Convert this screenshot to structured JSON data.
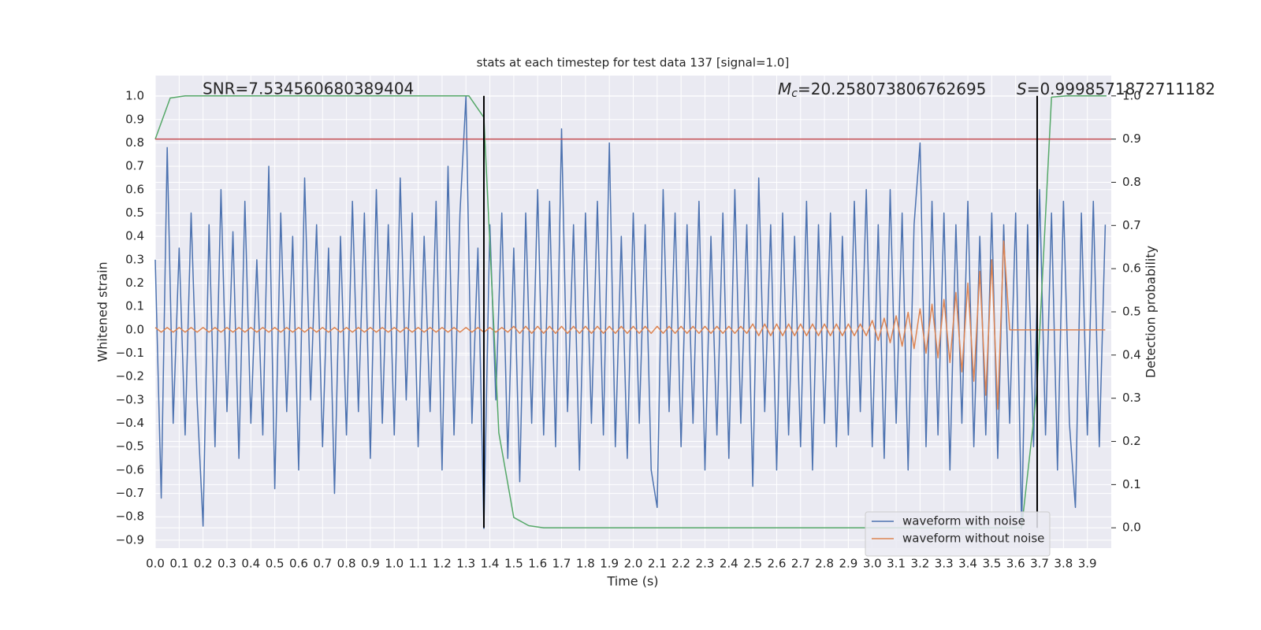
{
  "chart_data": {
    "type": "line",
    "title": "stats at each timestep for test data 137 [signal=1.0]",
    "x_label": "Time (s)",
    "y_label": "Whitened strain",
    "y2_label": "Detection probability",
    "xlim": [
      0,
      4.0
    ],
    "ylim": [
      -0.934,
      1.088
    ],
    "y2lim": [
      -0.047,
      1.047
    ],
    "xticks": [
      {
        "value": 0,
        "label": "0.0"
      },
      0.1,
      0.2,
      0.3,
      0.4,
      0.5,
      0.6,
      0.7,
      0.8,
      0.9,
      {
        "value": 1,
        "label": "1.0"
      },
      1.1,
      1.2,
      1.3,
      1.4,
      1.5,
      1.6,
      1.7,
      1.8,
      1.9,
      {
        "value": 2,
        "label": "2.0"
      },
      2.1,
      2.2,
      2.3,
      2.4,
      2.5,
      2.6,
      2.7,
      2.8,
      2.9,
      {
        "value": 3,
        "label": "3.0"
      },
      3.1,
      3.2,
      3.3,
      3.4,
      3.5,
      3.6,
      3.7,
      3.8,
      3.9
    ],
    "yticks": [
      {
        "value": -0.9,
        "label": "−0.9"
      },
      {
        "value": -0.8,
        "label": "−0.8"
      },
      {
        "value": -0.7,
        "label": "−0.7"
      },
      {
        "value": -0.6,
        "label": "−0.6"
      },
      {
        "value": -0.5,
        "label": "−0.5"
      },
      {
        "value": -0.4,
        "label": "−0.4"
      },
      {
        "value": -0.3,
        "label": "−0.3"
      },
      {
        "value": -0.2,
        "label": "−0.2"
      },
      {
        "value": -0.1,
        "label": "−0.1"
      },
      {
        "value": 0,
        "label": "0.0"
      },
      0.1,
      0.2,
      0.3,
      0.4,
      0.5,
      0.6,
      0.7,
      0.8,
      0.9,
      {
        "value": 1,
        "label": "1.0"
      }
    ],
    "y2ticks": [
      {
        "value": 0,
        "label": "0.0"
      },
      0.1,
      0.2,
      0.3,
      0.4,
      0.5,
      0.6,
      0.7,
      0.8,
      0.9,
      {
        "value": 1,
        "label": "1.0"
      }
    ],
    "grid": true,
    "legend": "lower right",
    "annotations": {
      "snr": "SNR=7.534560680389404",
      "mc_symbol": "M",
      "mc_subscript": "c",
      "mc_value": "=20.258073806762695",
      "s_symbol": "S",
      "s_value": "=0.9998571872711182"
    },
    "x": [
      0,
      0.025,
      0.05,
      0.075,
      0.1,
      0.125,
      0.15,
      0.175,
      0.2,
      0.225,
      0.25,
      0.275,
      0.3,
      0.325,
      0.35,
      0.375,
      0.4,
      0.425,
      0.45,
      0.475,
      0.5,
      0.525,
      0.55,
      0.575,
      0.6,
      0.625,
      0.65,
      0.675,
      0.7,
      0.725,
      0.75,
      0.775,
      0.8,
      0.825,
      0.85,
      0.875,
      0.9,
      0.925,
      0.95,
      0.975,
      1.0,
      1.025,
      1.05,
      1.075,
      1.1,
      1.125,
      1.15,
      1.175,
      1.2,
      1.225,
      1.25,
      1.275,
      1.3,
      1.325,
      1.35,
      1.375,
      1.4,
      1.425,
      1.45,
      1.475,
      1.5,
      1.525,
      1.55,
      1.575,
      1.6,
      1.625,
      1.65,
      1.675,
      1.7,
      1.725,
      1.75,
      1.775,
      1.8,
      1.825,
      1.85,
      1.875,
      1.9,
      1.925,
      1.95,
      1.975,
      2.0,
      2.025,
      2.05,
      2.075,
      2.1,
      2.125,
      2.15,
      2.175,
      2.2,
      2.225,
      2.25,
      2.275,
      2.3,
      2.325,
      2.35,
      2.375,
      2.4,
      2.425,
      2.45,
      2.475,
      2.5,
      2.525,
      2.55,
      2.575,
      2.6,
      2.625,
      2.65,
      2.675,
      2.7,
      2.725,
      2.75,
      2.775,
      2.8,
      2.825,
      2.85,
      2.875,
      2.9,
      2.925,
      2.95,
      2.975,
      3.0,
      3.025,
      3.05,
      3.075,
      3.1,
      3.125,
      3.15,
      3.175,
      3.2,
      3.225,
      3.25,
      3.275,
      3.3,
      3.325,
      3.35,
      3.375,
      3.4,
      3.425,
      3.45,
      3.475,
      3.5,
      3.525,
      3.55,
      3.575,
      3.6,
      3.625,
      3.65,
      3.675,
      3.7,
      3.725,
      3.75,
      3.775,
      3.8,
      3.825,
      3.85,
      3.875,
      3.9,
      3.925,
      3.95,
      3.975
    ],
    "series": [
      {
        "name": "waveform with noise",
        "color": "#4c72b0",
        "values": [
          0.3,
          -0.72,
          0.78,
          -0.4,
          0.35,
          -0.45,
          0.5,
          -0.3,
          -0.84,
          0.45,
          -0.5,
          0.6,
          -0.35,
          0.42,
          -0.55,
          0.55,
          -0.4,
          0.3,
          -0.45,
          0.7,
          -0.68,
          0.5,
          -0.35,
          0.4,
          -0.6,
          0.65,
          -0.3,
          0.45,
          -0.5,
          0.35,
          -0.7,
          0.4,
          -0.45,
          0.55,
          -0.35,
          0.5,
          -0.55,
          0.6,
          -0.4,
          0.45,
          -0.45,
          0.65,
          -0.3,
          0.5,
          -0.5,
          0.4,
          -0.35,
          0.55,
          -0.6,
          0.7,
          -0.45,
          0.5,
          1.0,
          -0.4,
          0.35,
          -0.85,
          0.45,
          -0.3,
          0.5,
          -0.55,
          0.35,
          -0.65,
          0.5,
          -0.4,
          0.6,
          -0.45,
          0.55,
          -0.5,
          0.86,
          -0.35,
          0.45,
          -0.6,
          0.5,
          -0.4,
          0.55,
          -0.45,
          0.8,
          -0.5,
          0.4,
          -0.55,
          0.5,
          -0.4,
          0.45,
          -0.6,
          -0.76,
          0.6,
          -0.35,
          0.5,
          -0.5,
          0.45,
          -0.4,
          0.55,
          -0.6,
          0.4,
          -0.45,
          0.5,
          -0.55,
          0.6,
          -0.4,
          0.45,
          -0.67,
          0.65,
          -0.35,
          0.45,
          -0.6,
          0.5,
          -0.45,
          0.4,
          -0.5,
          0.55,
          -0.6,
          0.45,
          -0.4,
          0.5,
          -0.5,
          0.4,
          -0.45,
          0.55,
          -0.35,
          0.6,
          -0.5,
          0.45,
          -0.55,
          0.6,
          -0.4,
          0.5,
          -0.6,
          0.45,
          0.8,
          -0.5,
          0.55,
          -0.45,
          0.5,
          -0.6,
          0.45,
          -0.4,
          0.55,
          -0.5,
          0.4,
          -0.45,
          0.5,
          -0.55,
          0.45,
          -0.4,
          0.5,
          -0.85,
          0.45,
          -0.5,
          0.6,
          -0.45,
          0.5,
          -0.6,
          0.55,
          -0.4,
          -0.76,
          0.5,
          -0.45,
          0.55,
          -0.5,
          0.45
        ]
      },
      {
        "name": "waveform without noise",
        "color": "#dd8452",
        "values": [
          0.01,
          -0.01,
          0.01,
          -0.01,
          0.01,
          -0.01,
          0.01,
          -0.01,
          0.01,
          -0.01,
          0.01,
          -0.01,
          0.01,
          -0.01,
          0.01,
          -0.01,
          0.01,
          -0.01,
          0.01,
          -0.01,
          0.01,
          -0.01,
          0.01,
          -0.01,
          0.01,
          -0.01,
          0.01,
          -0.01,
          0.01,
          -0.01,
          0.01,
          -0.01,
          0.01,
          -0.01,
          0.01,
          -0.01,
          0.01,
          -0.01,
          0.01,
          -0.01,
          0.01,
          -0.01,
          0.01,
          -0.01,
          0.01,
          -0.01,
          0.01,
          -0.01,
          0.01,
          -0.01,
          0.01,
          -0.01,
          0.01,
          -0.01,
          0.01,
          -0.01,
          0.01,
          -0.01,
          0.01,
          -0.01,
          0.015,
          -0.015,
          0.015,
          -0.015,
          0.015,
          -0.015,
          0.015,
          -0.015,
          0.015,
          -0.015,
          0.015,
          -0.015,
          0.015,
          -0.015,
          0.015,
          -0.015,
          0.015,
          -0.015,
          0.015,
          -0.015,
          0.015,
          -0.015,
          0.015,
          -0.015,
          0.015,
          -0.015,
          0.015,
          -0.015,
          0.015,
          -0.015,
          0.015,
          -0.015,
          0.015,
          -0.015,
          0.015,
          -0.015,
          0.015,
          -0.015,
          0.015,
          -0.015,
          0.025,
          -0.025,
          0.025,
          -0.025,
          0.025,
          -0.025,
          0.025,
          -0.025,
          0.025,
          -0.025,
          0.025,
          -0.025,
          0.025,
          -0.025,
          0.025,
          -0.025,
          0.025,
          -0.025,
          0.025,
          -0.025,
          0.04,
          -0.045,
          0.05,
          -0.055,
          0.06,
          -0.07,
          0.075,
          -0.08,
          0.09,
          -0.1,
          0.11,
          -0.12,
          0.13,
          -0.14,
          0.16,
          -0.18,
          0.2,
          -0.22,
          0.25,
          -0.28,
          0.3,
          -0.34,
          0.38,
          0.0,
          0.0,
          0.0,
          0.0,
          0.0,
          0.0,
          0.0,
          0.0,
          0.0,
          0.0,
          0.0,
          0.0,
          0.0,
          0.0,
          0.0,
          0.0,
          0.0
        ]
      },
      {
        "color": "#55a868",
        "axis": "y2",
        "x": [
          0,
          0.0625,
          0.125,
          1.25,
          1.3125,
          1.375,
          1.4375,
          1.5,
          1.5625,
          1.625,
          3.625,
          3.6875,
          3.75,
          3.8125,
          3.98
        ],
        "values": [
          0.9,
          0.995,
          1.0,
          1.0,
          1.0,
          0.95,
          0.22,
          0.024,
          0.005,
          0.0,
          0.0,
          0.31,
          0.997,
          1.0,
          1.0
        ]
      }
    ],
    "threshold": {
      "color": "#c44e52",
      "axis": "y2",
      "value": 0.9
    },
    "vlines": {
      "color": "#000000",
      "x": [
        1.375,
        3.69
      ]
    }
  }
}
